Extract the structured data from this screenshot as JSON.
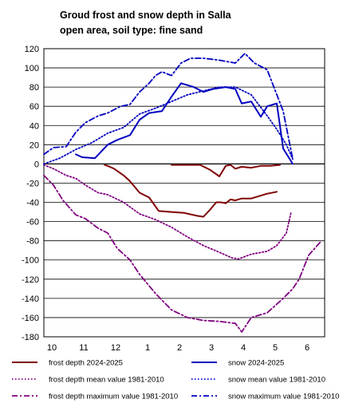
{
  "chart_data": {
    "type": "line",
    "title": "Groud frost and snow depth in Salla",
    "subtitle": "open area, soil type: fine sand",
    "xlabel": "",
    "ylabel": "",
    "ylim": [
      -180,
      120
    ],
    "yticks": [
      120,
      100,
      80,
      60,
      40,
      20,
      0,
      -20,
      -40,
      -60,
      -80,
      -100,
      -120,
      -140,
      -160,
      -180
    ],
    "xlim": [
      10,
      6.8
    ],
    "xticks": [
      "10",
      "11",
      "12",
      "1",
      "2",
      "3",
      "4",
      "5",
      "6"
    ],
    "grid": true,
    "legend_position": "bottom",
    "series": [
      {
        "name": "frost depth 2024-2025",
        "color": "#800000",
        "style": "solid",
        "x": [
          11.9,
          12.0,
          12.2,
          12.5,
          12.7,
          13.0,
          13.3,
          13.6,
          14.0,
          14.4,
          14.8,
          15.0,
          15.2,
          15.4,
          15.55,
          15.7,
          15.85,
          16.0,
          16.2,
          16.5,
          16.8,
          17.0,
          17.3
        ],
        "y": [
          -1,
          -2,
          -5,
          -12,
          -18,
          -30,
          -35,
          -49,
          -50,
          -51,
          -54,
          -55,
          -48,
          -40,
          -40,
          -41,
          -37,
          -38,
          -36,
          -36,
          -33,
          -31,
          -29
        ]
      },
      {
        "name": "frost depth 2024-2025 (surface)",
        "color": "#800000",
        "style": "solid",
        "x": [
          14.0,
          14.5,
          14.9,
          15.2,
          15.5,
          15.7,
          15.85,
          16.0,
          16.2,
          16.5,
          16.8,
          17.1,
          17.4
        ],
        "y": [
          -1,
          -1,
          -1,
          -6,
          -13,
          -2,
          -1,
          -5,
          -3,
          -4,
          -2,
          -2,
          -1
        ]
      },
      {
        "name": "frost depth mean value 1981-2010",
        "color": "#800080",
        "style": "dotted",
        "x": [
          10.0,
          10.3,
          10.7,
          11.0,
          11.3,
          11.7,
          12.0,
          12.5,
          13.0,
          13.5,
          14.0,
          14.5,
          15.0,
          15.5,
          15.9,
          16.1,
          16.5,
          17.0,
          17.3,
          17.6,
          17.75
        ],
        "y": [
          -1,
          -5,
          -12,
          -15,
          -22,
          -30,
          -32,
          -40,
          -52,
          -58,
          -66,
          -76,
          -85,
          -92,
          -98,
          -99,
          -94,
          -91,
          -85,
          -72,
          -50
        ]
      },
      {
        "name": "frost depth maximum value 1981-2010",
        "color": "#800080",
        "style": "dashdot",
        "x": [
          10.0,
          10.3,
          10.6,
          11.0,
          11.3,
          11.7,
          12.0,
          12.3,
          12.7,
          13.0,
          13.5,
          14.0,
          14.5,
          15.0,
          15.5,
          16.0,
          16.2,
          16.5,
          17.0,
          17.5,
          17.8,
          18.0,
          18.3,
          18.7
        ],
        "y": [
          -12,
          -22,
          -38,
          -53,
          -57,
          -67,
          -72,
          -88,
          -100,
          -115,
          -135,
          -152,
          -160,
          -163,
          -164,
          -166,
          -175,
          -160,
          -155,
          -140,
          -130,
          -120,
          -95,
          -80
        ]
      },
      {
        "name": "snow 2024-2025",
        "color": "#0000c0",
        "style": "solid",
        "x": [
          11.0,
          11.2,
          11.6,
          12.0,
          12.3,
          12.7,
          13.0,
          13.3,
          13.7,
          14.0,
          14.3,
          14.7,
          15.0,
          15.3,
          15.7,
          16.0,
          16.2,
          16.5,
          16.8,
          17.0,
          17.3,
          17.5,
          17.8
        ],
        "y": [
          10,
          7,
          6,
          20,
          25,
          30,
          46,
          53,
          55,
          70,
          84,
          80,
          75,
          78,
          80,
          78,
          63,
          65,
          49,
          60,
          63,
          16,
          0
        ]
      },
      {
        "name": "snow mean value 1981-2010",
        "color": "#0000c0",
        "style": "dotted",
        "x": [
          10.0,
          10.5,
          11.0,
          11.5,
          12.0,
          12.5,
          13.0,
          13.5,
          14.0,
          14.5,
          15.0,
          15.5,
          16.0,
          16.5,
          17.0,
          17.3,
          17.6,
          17.8
        ],
        "y": [
          0,
          6,
          15,
          22,
          32,
          38,
          52,
          58,
          65,
          72,
          76,
          80,
          80,
          72,
          50,
          36,
          20,
          5
        ]
      },
      {
        "name": "snow maximum value 1981-2010",
        "color": "#0000c0",
        "style": "dashdot",
        "x": [
          10.0,
          10.3,
          10.7,
          11.0,
          11.3,
          11.7,
          12.0,
          12.4,
          12.7,
          13.0,
          13.3,
          13.5,
          13.7,
          14.0,
          14.3,
          14.6,
          15.0,
          15.5,
          16.0,
          16.3,
          16.6,
          17.0,
          17.5,
          17.8
        ],
        "y": [
          10,
          17,
          18,
          33,
          43,
          50,
          53,
          60,
          62,
          75,
          84,
          92,
          96,
          92,
          105,
          110,
          110,
          108,
          105,
          115,
          105,
          98,
          55,
          5
        ]
      }
    ]
  },
  "legend": [
    {
      "label": "frost depth 2024-2025",
      "color": "#800000",
      "style": "solid"
    },
    {
      "label": "snow 2024-2025",
      "color": "#0000c0",
      "style": "solid"
    },
    {
      "label": "frost depth mean value 1981-2010",
      "color": "#800080",
      "style": "dotted"
    },
    {
      "label": "snow mean value 1981-2010",
      "color": "#0000c0",
      "style": "dotted"
    },
    {
      "label": "frost depth maximum value 1981-2010",
      "color": "#800080",
      "style": "dashdot"
    },
    {
      "label": "snow maximum value 1981-2010",
      "color": "#0000c0",
      "style": "dashdot"
    }
  ]
}
